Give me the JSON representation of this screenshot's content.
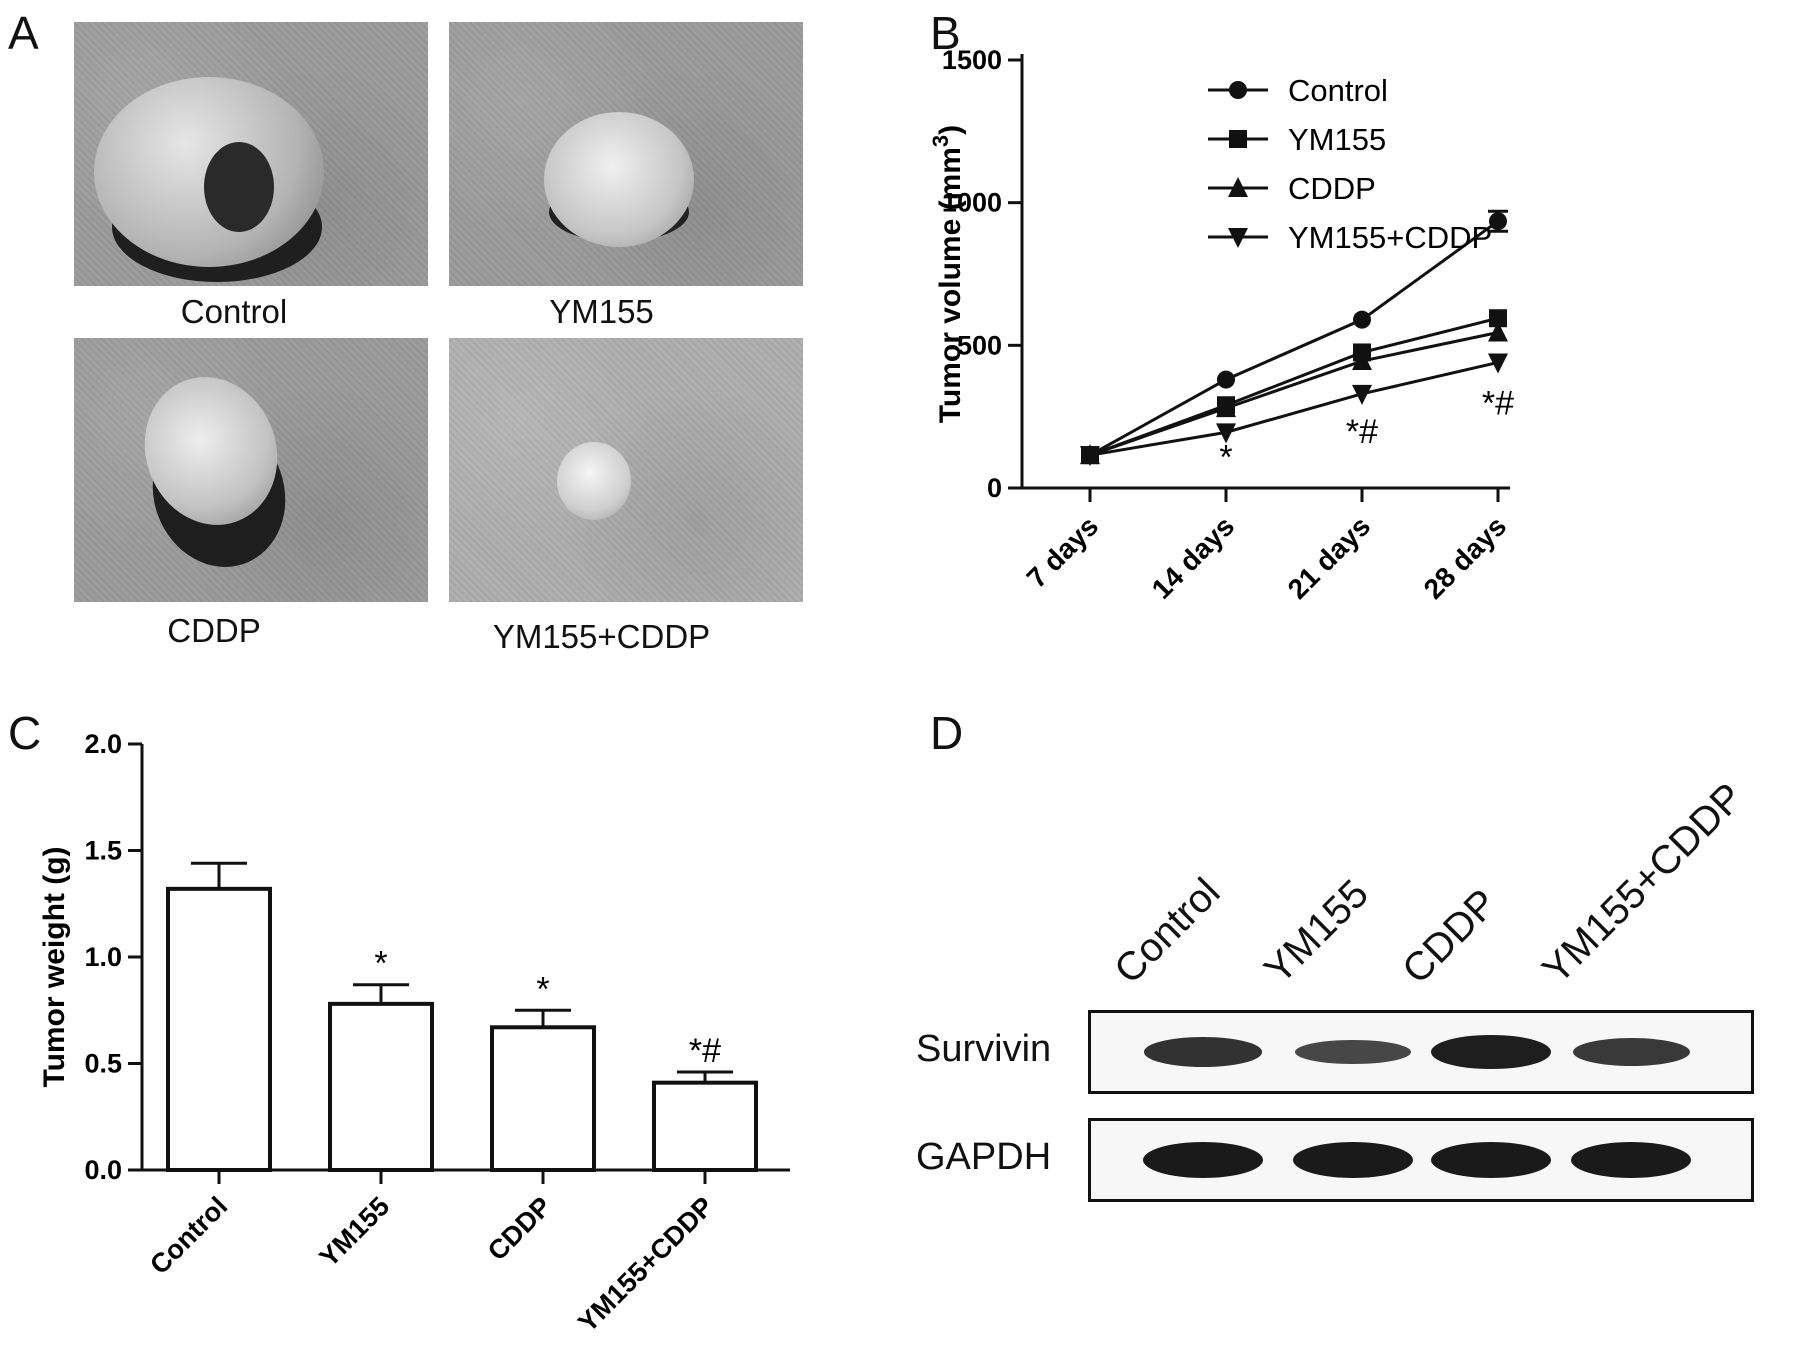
{
  "panels": {
    "a": {
      "letter": "A"
    },
    "b": {
      "letter": "B"
    },
    "c": {
      "letter": "C"
    },
    "d": {
      "letter": "D"
    }
  },
  "photos": [
    {
      "label": "Control"
    },
    {
      "label": "YM155"
    },
    {
      "label": "CDDP"
    },
    {
      "label": "YM155+CDDP"
    }
  ],
  "chart_data": [
    {
      "type": "line",
      "panel": "B",
      "x": [
        "7 days",
        "14 days",
        "21 days",
        "28 days"
      ],
      "ylabel": "Tumor volume (mm",
      "ylabel_sup": "3",
      "ylabel_end": ")",
      "ylim": [
        0,
        1500
      ],
      "yticks": [
        "0",
        "500",
        "1000",
        "1500"
      ],
      "legend_position": "top-left",
      "series": [
        {
          "name": "Control",
          "marker": "circle",
          "values": [
            115,
            380,
            590,
            935
          ],
          "err": [
            0,
            0,
            0,
            35
          ]
        },
        {
          "name": "YM155",
          "marker": "square",
          "values": [
            115,
            290,
            475,
            595
          ],
          "err": [
            0,
            0,
            0,
            0
          ]
        },
        {
          "name": "CDDP",
          "marker": "triangle-up",
          "values": [
            115,
            280,
            445,
            545
          ],
          "err": [
            0,
            0,
            0,
            0
          ]
        },
        {
          "name": "YM155+CDDP",
          "marker": "triangle-down",
          "values": [
            115,
            195,
            330,
            440
          ],
          "err": [
            0,
            0,
            0,
            0
          ]
        }
      ],
      "annotations": [
        {
          "x": "14 days",
          "y": 110,
          "text": "*"
        },
        {
          "x": "21 days",
          "y": 200,
          "text": "*#"
        },
        {
          "x": "28 days",
          "y": 300,
          "text": "*#"
        }
      ]
    },
    {
      "type": "bar",
      "panel": "C",
      "categories": [
        "Control",
        "YM155",
        "CDDP",
        "YM155+CDDP"
      ],
      "values": [
        1.32,
        0.78,
        0.67,
        0.41
      ],
      "errors": [
        0.12,
        0.09,
        0.08,
        0.05
      ],
      "ylabel": "Tumor weight (g)",
      "ylim": [
        0,
        2.0
      ],
      "yticks": [
        "0.0",
        "0.5",
        "1.0",
        "1.5",
        "2.0"
      ],
      "bar_annotations": [
        "",
        "*",
        "*",
        "*#"
      ]
    }
  ],
  "blot": {
    "lanes": [
      "Control",
      "YM155",
      "CDDP",
      "YM155+CDDP"
    ],
    "rows": [
      {
        "label": "Survivin",
        "intensity": [
          0.75,
          0.55,
          0.95,
          0.7
        ]
      },
      {
        "label": "GAPDH",
        "intensity": [
          1.0,
          1.0,
          1.0,
          1.0
        ]
      }
    ]
  }
}
